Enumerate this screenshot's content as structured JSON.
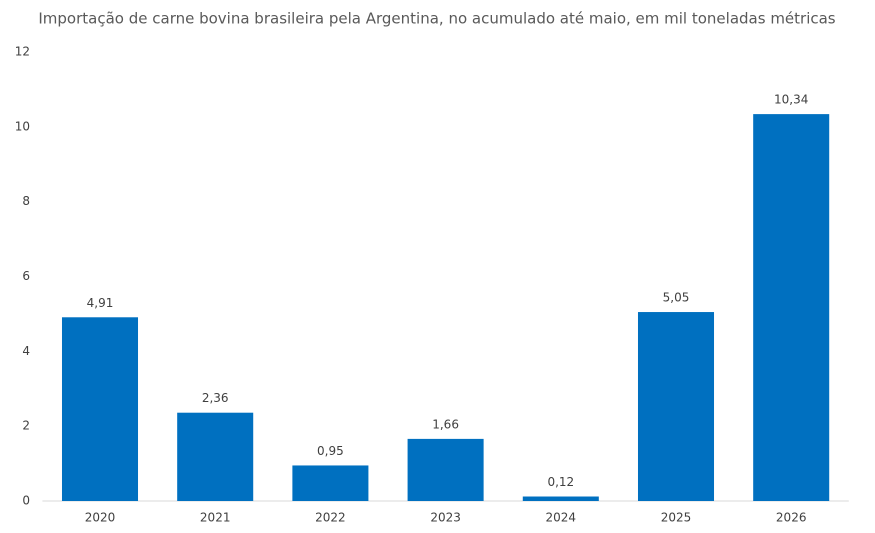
{
  "chart_data": {
    "type": "bar",
    "title": "Importação de carne bovina brasileira pela Argentina, no acumulado até maio, em mil toneladas métricas",
    "categories": [
      "2020",
      "2021",
      "2022",
      "2023",
      "2024",
      "2025",
      "2026"
    ],
    "values": [
      4.91,
      2.36,
      0.95,
      1.66,
      0.12,
      5.05,
      10.34
    ],
    "value_labels": [
      "4,91",
      "2,36",
      "0,95",
      "1,66",
      "0,12",
      "5,05",
      "10,34"
    ],
    "color": "#0070c0",
    "ylim": [
      0,
      12
    ],
    "yticks": [
      0,
      2,
      4,
      6,
      8,
      10,
      12
    ],
    "grid": false
  }
}
